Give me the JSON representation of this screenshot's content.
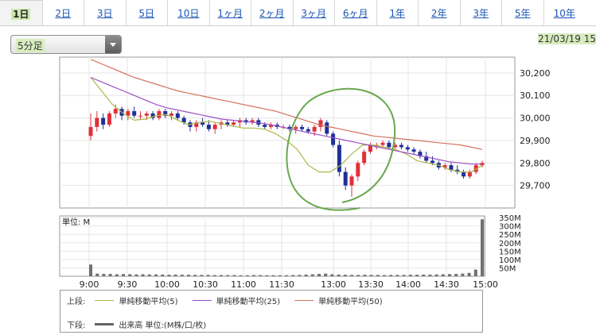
{
  "tabs": [
    "1日",
    "2日",
    "3日",
    "5日",
    "10日",
    "1ヶ月",
    "2ヶ月",
    "3ヶ月",
    "6ヶ月",
    "1年",
    "2年",
    "3年",
    "5年",
    "10年"
  ],
  "interval_select": {
    "value": "5分足"
  },
  "date_label": "21/03/19 15",
  "chart_data": [
    {
      "type": "candlestick",
      "title": "",
      "y_ticks": [
        "30,200",
        "30,100",
        "30,000",
        "29,900",
        "29,800",
        "29,700"
      ],
      "ylim": [
        29600,
        30270
      ],
      "x_ticks": [
        "9:00",
        "9:30",
        "10:00",
        "10:30",
        "11:00",
        "11:30",
        "13:00",
        "13:30",
        "14:00",
        "14:30",
        "15:00"
      ],
      "bar_colors": {
        "up": "#e0303a",
        "down": "#1f2f99"
      },
      "candles": [
        [
          29920,
          30020,
          29900,
          29960
        ],
        [
          29960,
          30030,
          29940,
          30000
        ],
        [
          30000,
          30020,
          29950,
          29970
        ],
        [
          29970,
          30030,
          29960,
          30020
        ],
        [
          30020,
          30060,
          30000,
          30040
        ],
        [
          30040,
          30050,
          29990,
          30010
        ],
        [
          30010,
          30040,
          29990,
          30030
        ],
        [
          30030,
          30050,
          30000,
          30010
        ],
        [
          30010,
          30030,
          29990,
          30010
        ],
        [
          30010,
          30030,
          29990,
          30020
        ],
        [
          30020,
          30030,
          29990,
          30000
        ],
        [
          30000,
          30040,
          29990,
          30030
        ],
        [
          30030,
          30040,
          30000,
          30010
        ],
        [
          30010,
          30030,
          29990,
          30020
        ],
        [
          30020,
          30030,
          29990,
          30000
        ],
        [
          30000,
          30010,
          29970,
          29980
        ],
        [
          29980,
          29990,
          29940,
          29960
        ],
        [
          29960,
          29990,
          29940,
          29980
        ],
        [
          29980,
          30000,
          29960,
          29970
        ],
        [
          29970,
          29990,
          29940,
          29950
        ],
        [
          29950,
          29980,
          29930,
          29970
        ],
        [
          29970,
          29990,
          29950,
          29980
        ],
        [
          29980,
          29990,
          29960,
          29970
        ],
        [
          29970,
          29990,
          29960,
          29980
        ],
        [
          29980,
          30000,
          29960,
          29990
        ],
        [
          29990,
          30000,
          29970,
          29980
        ],
        [
          29980,
          30000,
          29970,
          29990
        ],
        [
          29990,
          30000,
          29960,
          29970
        ],
        [
          29970,
          29980,
          29950,
          29960
        ],
        [
          29960,
          29980,
          29950,
          29970
        ],
        [
          29970,
          29980,
          29950,
          29960
        ],
        [
          29960,
          29970,
          29950,
          29960
        ],
        [
          29960,
          29970,
          29940,
          29950
        ],
        [
          29950,
          29970,
          29930,
          29960
        ],
        [
          29960,
          29970,
          29940,
          29950
        ],
        [
          29950,
          29960,
          29930,
          29940
        ],
        [
          29940,
          29970,
          29920,
          29960
        ],
        [
          29960,
          30000,
          29940,
          29990
        ],
        [
          29980,
          29990,
          29920,
          29930
        ],
        [
          29930,
          29940,
          29870,
          29880
        ],
        [
          29880,
          29900,
          29740,
          29760
        ],
        [
          29760,
          29780,
          29680,
          29700
        ],
        [
          29700,
          29750,
          29650,
          29740
        ],
        [
          29740,
          29810,
          29720,
          29800
        ],
        [
          29800,
          29860,
          29790,
          29850
        ],
        [
          29850,
          29890,
          29840,
          29880
        ],
        [
          29870,
          29890,
          29860,
          29880
        ],
        [
          29880,
          29900,
          29870,
          29890
        ],
        [
          29890,
          29900,
          29860,
          29870
        ],
        [
          29870,
          29890,
          29860,
          29880
        ],
        [
          29880,
          29890,
          29860,
          29870
        ],
        [
          29870,
          29880,
          29850,
          29860
        ],
        [
          29860,
          29870,
          29840,
          29850
        ],
        [
          29850,
          29860,
          29820,
          29830
        ],
        [
          29830,
          29850,
          29800,
          29810
        ],
        [
          29810,
          29830,
          29790,
          29800
        ],
        [
          29800,
          29810,
          29770,
          29780
        ],
        [
          29780,
          29800,
          29770,
          29790
        ],
        [
          29790,
          29800,
          29760,
          29770
        ],
        [
          29770,
          29790,
          29750,
          29760
        ],
        [
          29760,
          29770,
          29730,
          29740
        ],
        [
          29740,
          29770,
          29730,
          29760
        ],
        [
          29760,
          29800,
          29750,
          29790
        ],
        [
          29790,
          29810,
          29780,
          29800
        ]
      ],
      "series": [
        {
          "name": "単純移動平均(5)",
          "color": "#aab84a",
          "values": [
            30180,
            30120,
            30060,
            30020,
            29990,
            29995,
            30010,
            30015,
            29990,
            29970,
            29980,
            29985,
            29975,
            29965,
            29955,
            29955,
            29950,
            29930,
            29900,
            29860,
            29790,
            29760,
            29760,
            29790,
            29840,
            29880,
            29880,
            29870,
            29860,
            29840,
            29810,
            29800,
            29790,
            29770,
            29760,
            29760,
            29790
          ]
        },
        {
          "name": "単純移動平均(25)",
          "color": "#9a4fc6",
          "values": [
            30180,
            30160,
            30140,
            30120,
            30100,
            30080,
            30060,
            30045,
            30035,
            30025,
            30015,
            30005,
            29995,
            29990,
            29985,
            29980,
            29975,
            29965,
            29955,
            29945,
            29935,
            29925,
            29915,
            29905,
            29895,
            29885,
            29875,
            29865,
            29855,
            29845,
            29835,
            29825,
            29815,
            29805,
            29800,
            29795,
            29795
          ]
        },
        {
          "name": "単純移動平均(50)",
          "color": "#d5705a",
          "values": [
            30260,
            30240,
            30220,
            30200,
            30180,
            30165,
            30150,
            30135,
            30120,
            30110,
            30100,
            30090,
            30080,
            30070,
            30060,
            30050,
            30040,
            30030,
            30015,
            30000,
            29985,
            29970,
            29960,
            29950,
            29940,
            29930,
            29920,
            29915,
            29910,
            29905,
            29900,
            29895,
            29890,
            29885,
            29880,
            29870,
            29860
          ]
        }
      ]
    },
    {
      "type": "bar",
      "title": "",
      "label": "単位: M",
      "y_ticks": [
        "350M",
        "300M",
        "250M",
        "200M",
        "150M",
        "100M",
        "50M"
      ],
      "ylim": [
        0,
        360
      ],
      "values": [
        70,
        16,
        14,
        14,
        12,
        13,
        12,
        11,
        12,
        11,
        11,
        10,
        9,
        10,
        9,
        9,
        8,
        8,
        8,
        7,
        7,
        7,
        7,
        6,
        6,
        7,
        7,
        6,
        6,
        6,
        6,
        7,
        8,
        10,
        12,
        14,
        16,
        12,
        10,
        9,
        8,
        8,
        9,
        8,
        8,
        7,
        8,
        8,
        8,
        9,
        9,
        10,
        10,
        11,
        12,
        13,
        14,
        16,
        20,
        40,
        340
      ]
    }
  ],
  "annotation": {
    "color": "#6aa84f"
  },
  "legend": {
    "upper_label": "上段:",
    "lower_label": "下段:",
    "items": [
      {
        "label": "単純移動平均(5)",
        "color": "#aab84a"
      },
      {
        "label": "単純移動平均(25)",
        "color": "#9a4fc6"
      },
      {
        "label": "単純移動平均(50)",
        "color": "#d5705a"
      }
    ],
    "volume": {
      "label": "出来高 単位:(M株/口/枚)",
      "color": "#666666"
    }
  }
}
